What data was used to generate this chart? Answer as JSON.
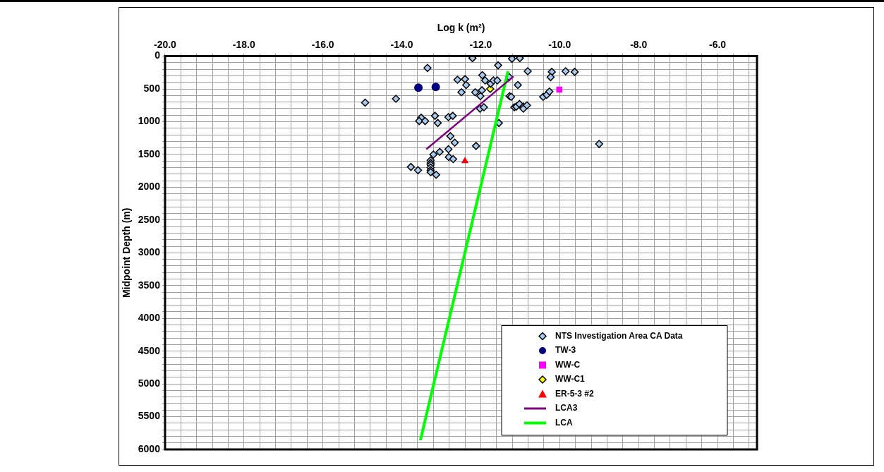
{
  "chart_data": {
    "type": "scatter",
    "xlabel": "Log k (m²)",
    "ylabel": "Midpoint Depth (m)",
    "xlim": [
      -20,
      -5
    ],
    "xticks": [
      {
        "value": -20,
        "label": "-20.0"
      },
      {
        "value": -19.6,
        "label": null
      },
      {
        "value": -19.2,
        "label": null
      },
      {
        "value": -18.8,
        "label": null
      },
      {
        "value": -18.4,
        "label": null
      },
      {
        "value": -18,
        "label": "-18.0"
      },
      {
        "value": -17.6,
        "label": null
      },
      {
        "value": -17.2,
        "label": null
      },
      {
        "value": -16.8,
        "label": null
      },
      {
        "value": -16.4,
        "label": null
      },
      {
        "value": -16,
        "label": "-16.0"
      },
      {
        "value": -15.6,
        "label": null
      },
      {
        "value": -15.2,
        "label": null
      },
      {
        "value": -14.8,
        "label": null
      },
      {
        "value": -14.4,
        "label": null
      },
      {
        "value": -14,
        "label": "-14.0"
      },
      {
        "value": -13.6,
        "label": null
      },
      {
        "value": -13.2,
        "label": null
      },
      {
        "value": -12.8,
        "label": null
      },
      {
        "value": -12.4,
        "label": null
      },
      {
        "value": -12,
        "label": "-12.0"
      },
      {
        "value": -11.6,
        "label": null
      },
      {
        "value": -11.2,
        "label": null
      },
      {
        "value": -10.8,
        "label": null
      },
      {
        "value": -10.4,
        "label": null
      },
      {
        "value": -10,
        "label": "-10.0"
      },
      {
        "value": -9.6,
        "label": null
      },
      {
        "value": -9.2,
        "label": null
      },
      {
        "value": -8.8,
        "label": null
      },
      {
        "value": -8.4,
        "label": null
      },
      {
        "value": -8,
        "label": "-8.0"
      },
      {
        "value": -7.6,
        "label": null
      },
      {
        "value": -7.2,
        "label": null
      },
      {
        "value": -6.8,
        "label": null
      },
      {
        "value": -6.4,
        "label": null
      },
      {
        "value": -6,
        "label": "-6.0"
      },
      {
        "value": -5.6,
        "label": null
      },
      {
        "value": -5.2,
        "label": null
      }
    ],
    "ylim": [
      6000,
      0
    ],
    "yticks": [
      0,
      {
        "value": 100,
        "label": null
      },
      {
        "value": 200,
        "label": null
      },
      {
        "value": 300,
        "label": null
      },
      {
        "value": 400,
        "label": null
      },
      500,
      {
        "value": 600,
        "label": null
      },
      {
        "value": 700,
        "label": null
      },
      {
        "value": 800,
        "label": null
      },
      {
        "value": 900,
        "label": null
      },
      1000,
      {
        "value": 1100,
        "label": null
      },
      {
        "value": 1200,
        "label": null
      },
      {
        "value": 1300,
        "label": null
      },
      {
        "value": 1400,
        "label": null
      },
      1500,
      {
        "value": 1600,
        "label": null
      },
      {
        "value": 1700,
        "label": null
      },
      {
        "value": 1800,
        "label": null
      },
      {
        "value": 1900,
        "label": null
      },
      2000,
      {
        "value": 2100,
        "label": null
      },
      {
        "value": 2200,
        "label": null
      },
      {
        "value": 2300,
        "label": null
      },
      {
        "value": 2400,
        "label": null
      },
      2500,
      {
        "value": 2600,
        "label": null
      },
      {
        "value": 2700,
        "label": null
      },
      {
        "value": 2800,
        "label": null
      },
      {
        "value": 2900,
        "label": null
      },
      3000,
      {
        "value": 3100,
        "label": null
      },
      {
        "value": 3200,
        "label": null
      },
      {
        "value": 3300,
        "label": null
      },
      {
        "value": 3400,
        "label": null
      },
      3500,
      {
        "value": 3600,
        "label": null
      },
      {
        "value": 3700,
        "label": null
      },
      {
        "value": 3800,
        "label": null
      },
      {
        "value": 3900,
        "label": null
      },
      4000,
      {
        "value": 4100,
        "label": null
      },
      {
        "value": 4200,
        "label": null
      },
      {
        "value": 4300,
        "label": null
      },
      {
        "value": 4400,
        "label": null
      },
      4500,
      {
        "value": 4600,
        "label": null
      },
      {
        "value": 4700,
        "label": null
      },
      {
        "value": 4800,
        "label": null
      },
      {
        "value": 4900,
        "label": null
      },
      5000,
      {
        "value": 5100,
        "label": null
      },
      {
        "value": 5200,
        "label": null
      },
      {
        "value": 5300,
        "label": null
      },
      {
        "value": 5400,
        "label": null
      },
      5500,
      {
        "value": 5600,
        "label": null
      },
      {
        "value": 5700,
        "label": null
      },
      {
        "value": 5800,
        "label": null
      },
      {
        "value": 5900,
        "label": null
      },
      6000
    ],
    "grid": true,
    "legend": "bottom right",
    "series": [
      {
        "name": "NTS Investigation Area CA Data",
        "type": "scatter",
        "marker": "diamond",
        "color": "#a6caf0",
        "x": [
          -12.21,
          -13.35,
          -11.21,
          -11.01,
          -11.56,
          -10.81,
          -10.2,
          -10.23,
          -9.85,
          -9.62,
          -11.96,
          -11.89,
          -12.59,
          -12.4,
          -12.37,
          -11.75,
          -11.68,
          -11.58,
          -11.28,
          -11.06,
          -12.49,
          -12.14,
          -11.97,
          -12.01,
          -11.27,
          -11.23,
          -10.42,
          -10.33,
          -10.26,
          -14.93,
          -14.15,
          -11.15,
          -11.1,
          -11.02,
          -10.92,
          -10.92,
          -10.83,
          -12.02,
          -11.92,
          -13.51,
          -13.56,
          -13.41,
          -13.16,
          -13.09,
          -12.82,
          -12.71,
          -11.54,
          -12.77,
          -12.66,
          -12.12,
          -12.82,
          -13.04,
          -13.2,
          -12.81,
          -12.7,
          -13.27,
          -13.27,
          -13.27,
          -13.27,
          -13.27,
          -13.27,
          -13.13,
          -13.77,
          -13.59,
          -9.0
        ],
        "values": [
          30,
          180,
          40,
          30,
          140,
          230,
          240,
          320,
          230,
          240,
          290,
          370,
          360,
          350,
          440,
          420,
          370,
          370,
          320,
          440,
          550,
          550,
          520,
          610,
          610,
          620,
          620,
          590,
          540,
          710,
          650,
          780,
          770,
          730,
          770,
          800,
          750,
          800,
          780,
          940,
          990,
          990,
          910,
          1020,
          930,
          910,
          1020,
          1220,
          1320,
          1370,
          1420,
          1460,
          1500,
          1540,
          1570,
          1590,
          1630,
          1660,
          1700,
          1740,
          1770,
          1810,
          1690,
          1740,
          1340
        ]
      },
      {
        "name": "TW-3",
        "type": "scatter",
        "marker": "circle",
        "color": "#000080",
        "x": [
          -13.58,
          -13.14
        ],
        "values": [
          480,
          470
        ]
      },
      {
        "name": "WW-C",
        "type": "scatter",
        "marker": "square",
        "color": "#ff00ff",
        "x": [
          -10.01
        ],
        "values": [
          510
        ]
      },
      {
        "name": "WW-C1",
        "type": "scatter",
        "marker": "diamond",
        "color": "#ffff00",
        "x": [
          -11.76
        ],
        "values": [
          500
        ]
      },
      {
        "name": "ER-5-3 #2",
        "type": "scatter",
        "marker": "triangle",
        "color": "#ff0000",
        "x": [
          -12.4
        ],
        "values": [
          1600
        ]
      },
      {
        "name": "LCA3",
        "type": "line",
        "marker": "none",
        "line_style": "solid",
        "color": "#800080",
        "x": [
          -13.38,
          -11.17
        ],
        "values": [
          1420,
          310
        ]
      },
      {
        "name": "LCA",
        "type": "line",
        "marker": "none",
        "line_style": "solid",
        "color": "#00ff00",
        "x": [
          -11.31,
          -13.53
        ],
        "values": [
          230,
          5860
        ]
      }
    ]
  }
}
